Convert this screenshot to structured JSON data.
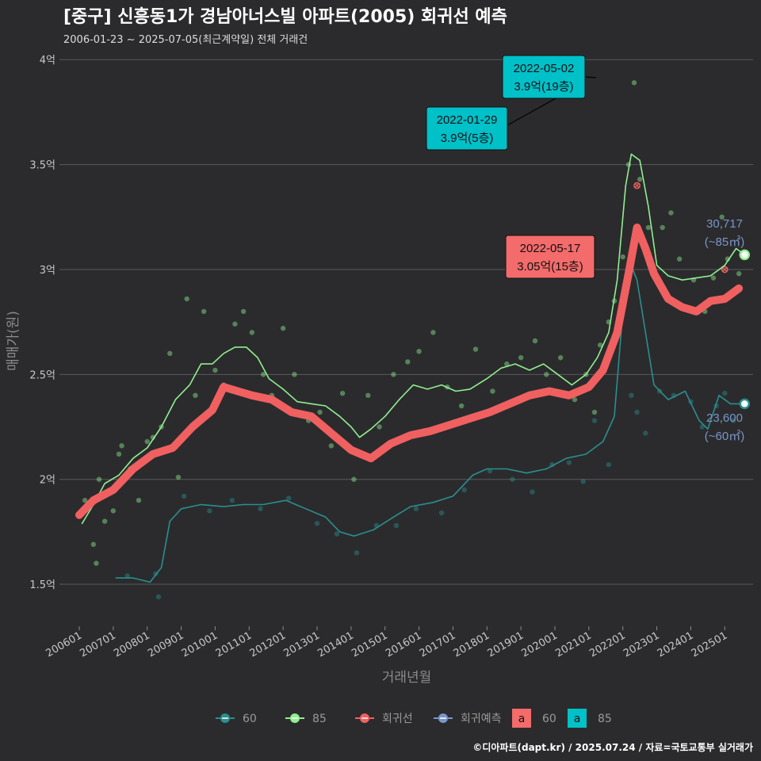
{
  "header": {
    "title": "[중구] 신흥동1가 경남아너스빌 아파트(2005) 회귀선 예측",
    "subtitle": "2006-01-23 ~ 2025-07-05(최근계약일) 전체 거래건"
  },
  "footer": {
    "source": "©디아파트(dapt.kr) / 2025.07.24 / 자료=국토교통부 실거래가"
  },
  "colors": {
    "background": "#2b2b2d",
    "grid": "#5a5a5c",
    "series_60": "#2a8f8f",
    "series_85": "#90ee90",
    "regression": "#f06060",
    "forecast": "#7a95c8",
    "callout_85": "#00c0c8",
    "callout_reg": "#f36b6b"
  },
  "chart_data": {
    "type": "line",
    "xlabel": "거래년월",
    "ylabel": "매매가(원)",
    "xlim": [
      "2005-06",
      "2025-11"
    ],
    "ylim": [
      1.3,
      4.05
    ],
    "y_ticks": [
      {
        "value": 1.5,
        "label": "1.5억"
      },
      {
        "value": 2.0,
        "label": "2억"
      },
      {
        "value": 2.5,
        "label": "2.5억"
      },
      {
        "value": 3.0,
        "label": "3억"
      },
      {
        "value": 3.5,
        "label": "3.5억"
      },
      {
        "value": 4.0,
        "label": "4억"
      }
    ],
    "x_ticks": [
      "200601",
      "200701",
      "200801",
      "200901",
      "201001",
      "201101",
      "201201",
      "201301",
      "201401",
      "201501",
      "201601",
      "201701",
      "201801",
      "201901",
      "202001",
      "202101",
      "202201",
      "202301",
      "202401",
      "202501"
    ],
    "grid": "horizontal",
    "legend_position": "bottom",
    "legend": {
      "lines": [
        {
          "label": "60",
          "color": "#2a8f8f"
        },
        {
          "label": "85",
          "color": "#90ee90"
        },
        {
          "label": "회귀선",
          "color": "#f06060"
        },
        {
          "label": "회귀예측",
          "color": "#7a95c8"
        }
      ],
      "labels": [
        {
          "label": "60",
          "color": "#f36b6b"
        },
        {
          "label": "85",
          "color": "#00c0c8"
        }
      ]
    },
    "series": [
      {
        "name": "85",
        "role": "moving-average",
        "points": [
          [
            "2006-02",
            1.79
          ],
          [
            "2006-06",
            1.88
          ],
          [
            "2006-10",
            1.98
          ],
          [
            "2007-03",
            2.02
          ],
          [
            "2007-08",
            2.1
          ],
          [
            "2008-01",
            2.15
          ],
          [
            "2008-06",
            2.25
          ],
          [
            "2008-11",
            2.38
          ],
          [
            "2009-04",
            2.45
          ],
          [
            "2009-08",
            2.55
          ],
          [
            "2009-12",
            2.55
          ],
          [
            "2010-04",
            2.6
          ],
          [
            "2010-08",
            2.63
          ],
          [
            "2010-12",
            2.63
          ],
          [
            "2011-04",
            2.58
          ],
          [
            "2011-08",
            2.48
          ],
          [
            "2012-01",
            2.43
          ],
          [
            "2012-06",
            2.37
          ],
          [
            "2012-11",
            2.36
          ],
          [
            "2013-04",
            2.35
          ],
          [
            "2013-09",
            2.3
          ],
          [
            "2014-01",
            2.25
          ],
          [
            "2014-04",
            2.2
          ],
          [
            "2014-08",
            2.24
          ],
          [
            "2015-01",
            2.3
          ],
          [
            "2015-06",
            2.38
          ],
          [
            "2015-11",
            2.45
          ],
          [
            "2016-04",
            2.43
          ],
          [
            "2016-09",
            2.45
          ],
          [
            "2017-02",
            2.42
          ],
          [
            "2017-07",
            2.43
          ],
          [
            "2018-01",
            2.48
          ],
          [
            "2018-06",
            2.53
          ],
          [
            "2018-11",
            2.55
          ],
          [
            "2019-04",
            2.52
          ],
          [
            "2019-09",
            2.55
          ],
          [
            "2020-02",
            2.5
          ],
          [
            "2020-07",
            2.45
          ],
          [
            "2020-12",
            2.5
          ],
          [
            "2021-04",
            2.58
          ],
          [
            "2021-08",
            2.7
          ],
          [
            "2021-11",
            2.95
          ],
          [
            "2022-02",
            3.4
          ],
          [
            "2022-04",
            3.55
          ],
          [
            "2022-07",
            3.52
          ],
          [
            "2022-10",
            3.3
          ],
          [
            "2023-01",
            3.02
          ],
          [
            "2023-05",
            2.97
          ],
          [
            "2023-10",
            2.95
          ],
          [
            "2024-03",
            2.96
          ],
          [
            "2024-08",
            2.97
          ],
          [
            "2025-01",
            3.02
          ],
          [
            "2025-05",
            3.1
          ],
          [
            "2025-08",
            3.07
          ]
        ]
      },
      {
        "name": "60",
        "role": "moving-average",
        "points": [
          [
            "2007-02",
            1.53
          ],
          [
            "2007-08",
            1.53
          ],
          [
            "2008-02",
            1.51
          ],
          [
            "2008-06",
            1.58
          ],
          [
            "2008-09",
            1.8
          ],
          [
            "2009-01",
            1.86
          ],
          [
            "2009-08",
            1.88
          ],
          [
            "2010-04",
            1.87
          ],
          [
            "2010-11",
            1.88
          ],
          [
            "2011-06",
            1.88
          ],
          [
            "2012-02",
            1.9
          ],
          [
            "2012-09",
            1.86
          ],
          [
            "2013-04",
            1.82
          ],
          [
            "2013-09",
            1.75
          ],
          [
            "2014-02",
            1.73
          ],
          [
            "2014-09",
            1.76
          ],
          [
            "2015-04",
            1.82
          ],
          [
            "2015-10",
            1.87
          ],
          [
            "2016-06",
            1.89
          ],
          [
            "2017-01",
            1.92
          ],
          [
            "2017-08",
            2.02
          ],
          [
            "2018-01",
            2.05
          ],
          [
            "2018-08",
            2.05
          ],
          [
            "2019-03",
            2.03
          ],
          [
            "2019-10",
            2.05
          ],
          [
            "2020-05",
            2.1
          ],
          [
            "2020-12",
            2.12
          ],
          [
            "2021-06",
            2.18
          ],
          [
            "2021-10",
            2.3
          ],
          [
            "2022-01",
            2.8
          ],
          [
            "2022-03",
            3.05
          ],
          [
            "2022-06",
            2.95
          ],
          [
            "2022-09",
            2.7
          ],
          [
            "2022-12",
            2.45
          ],
          [
            "2023-05",
            2.38
          ],
          [
            "2023-11",
            2.42
          ],
          [
            "2024-04",
            2.28
          ],
          [
            "2024-07",
            2.24
          ],
          [
            "2024-11",
            2.4
          ],
          [
            "2025-03",
            2.36
          ],
          [
            "2025-08",
            2.36
          ]
        ]
      },
      {
        "name": "회귀선",
        "role": "regression",
        "points": [
          [
            "2006-01",
            1.83
          ],
          [
            "2006-06",
            1.9
          ],
          [
            "2007-01",
            1.95
          ],
          [
            "2007-08",
            2.05
          ],
          [
            "2008-03",
            2.12
          ],
          [
            "2008-10",
            2.15
          ],
          [
            "2009-05",
            2.25
          ],
          [
            "2009-12",
            2.33
          ],
          [
            "2010-04",
            2.44
          ],
          [
            "2010-09",
            2.42
          ],
          [
            "2011-02",
            2.4
          ],
          [
            "2011-09",
            2.38
          ],
          [
            "2012-04",
            2.32
          ],
          [
            "2012-11",
            2.3
          ],
          [
            "2013-06",
            2.22
          ],
          [
            "2014-01",
            2.14
          ],
          [
            "2014-08",
            2.1
          ],
          [
            "2015-03",
            2.17
          ],
          [
            "2015-10",
            2.21
          ],
          [
            "2016-05",
            2.23
          ],
          [
            "2016-12",
            2.26
          ],
          [
            "2017-07",
            2.29
          ],
          [
            "2018-02",
            2.32
          ],
          [
            "2018-09",
            2.36
          ],
          [
            "2019-04",
            2.4
          ],
          [
            "2019-11",
            2.42
          ],
          [
            "2020-06",
            2.4
          ],
          [
            "2021-01",
            2.44
          ],
          [
            "2021-06",
            2.52
          ],
          [
            "2021-11",
            2.7
          ],
          [
            "2022-03",
            2.98
          ],
          [
            "2022-06",
            3.2
          ],
          [
            "2022-09",
            3.1
          ],
          [
            "2022-12",
            2.98
          ],
          [
            "2023-05",
            2.86
          ],
          [
            "2023-10",
            2.82
          ],
          [
            "2024-03",
            2.8
          ],
          [
            "2024-08",
            2.85
          ],
          [
            "2025-01",
            2.86
          ],
          [
            "2025-06",
            2.91
          ]
        ]
      }
    ],
    "scatter": {
      "85": [
        [
          "2006-03",
          1.9
        ],
        [
          "2006-06",
          1.69
        ],
        [
          "2006-07",
          1.6
        ],
        [
          "2006-08",
          2.0
        ],
        [
          "2006-10",
          1.8
        ],
        [
          "2007-01",
          1.85
        ],
        [
          "2007-03",
          2.12
        ],
        [
          "2007-04",
          2.16
        ],
        [
          "2007-07",
          2.05
        ],
        [
          "2007-10",
          1.9
        ],
        [
          "2008-01",
          2.18
        ],
        [
          "2008-03",
          2.2
        ],
        [
          "2008-06",
          2.25
        ],
        [
          "2008-09",
          2.6
        ],
        [
          "2008-12",
          2.01
        ],
        [
          "2009-03",
          2.86
        ],
        [
          "2009-06",
          2.4
        ],
        [
          "2009-09",
          2.8
        ],
        [
          "2010-01",
          2.52
        ],
        [
          "2010-04",
          2.45
        ],
        [
          "2010-08",
          2.74
        ],
        [
          "2010-11",
          2.8
        ],
        [
          "2011-02",
          2.7
        ],
        [
          "2011-06",
          2.5
        ],
        [
          "2011-09",
          2.4
        ],
        [
          "2012-01",
          2.72
        ],
        [
          "2012-05",
          2.5
        ],
        [
          "2012-10",
          2.28
        ],
        [
          "2013-02",
          2.32
        ],
        [
          "2013-06",
          2.16
        ],
        [
          "2013-10",
          2.41
        ],
        [
          "2014-02",
          2.0
        ],
        [
          "2014-07",
          2.4
        ],
        [
          "2014-11",
          2.25
        ],
        [
          "2015-04",
          2.5
        ],
        [
          "2015-09",
          2.56
        ],
        [
          "2016-01",
          2.61
        ],
        [
          "2016-06",
          2.7
        ],
        [
          "2016-11",
          2.44
        ],
        [
          "2017-04",
          2.35
        ],
        [
          "2017-09",
          2.62
        ],
        [
          "2018-03",
          2.42
        ],
        [
          "2018-08",
          2.55
        ],
        [
          "2019-01",
          2.58
        ],
        [
          "2019-06",
          2.66
        ],
        [
          "2019-10",
          2.5
        ],
        [
          "2020-03",
          2.58
        ],
        [
          "2020-08",
          2.38
        ],
        [
          "2020-12",
          2.5
        ],
        [
          "2021-03",
          2.32
        ],
        [
          "2021-05",
          2.64
        ],
        [
          "2021-08",
          2.75
        ],
        [
          "2021-10",
          2.85
        ],
        [
          "2022-01",
          3.06
        ],
        [
          "2022-03",
          3.5
        ],
        [
          "2022-05",
          3.89
        ],
        [
          "2022-07",
          3.43
        ],
        [
          "2022-10",
          3.2
        ],
        [
          "2023-03",
          3.2
        ],
        [
          "2023-06",
          3.27
        ],
        [
          "2023-09",
          3.05
        ],
        [
          "2024-02",
          2.95
        ],
        [
          "2024-06",
          2.8
        ],
        [
          "2024-09",
          2.96
        ],
        [
          "2024-12",
          3.25
        ],
        [
          "2025-02",
          3.05
        ],
        [
          "2025-06",
          2.98
        ]
      ],
      "60": [
        [
          "2007-06",
          1.54
        ],
        [
          "2008-04",
          1.55
        ],
        [
          "2008-05",
          1.44
        ],
        [
          "2009-02",
          1.92
        ],
        [
          "2009-11",
          1.85
        ],
        [
          "2010-07",
          1.9
        ],
        [
          "2011-05",
          1.86
        ],
        [
          "2012-03",
          1.91
        ],
        [
          "2013-01",
          1.79
        ],
        [
          "2013-08",
          1.74
        ],
        [
          "2014-03",
          1.65
        ],
        [
          "2014-10",
          1.78
        ],
        [
          "2015-05",
          1.78
        ],
        [
          "2015-12",
          1.86
        ],
        [
          "2016-09",
          1.84
        ],
        [
          "2017-05",
          1.95
        ],
        [
          "2018-02",
          2.04
        ],
        [
          "2018-10",
          2.0
        ],
        [
          "2019-05",
          1.94
        ],
        [
          "2019-12",
          2.07
        ],
        [
          "2020-06",
          2.08
        ],
        [
          "2020-11",
          1.99
        ],
        [
          "2021-03",
          2.28
        ],
        [
          "2021-08",
          2.07
        ],
        [
          "2021-12",
          2.8
        ],
        [
          "2022-04",
          2.4
        ],
        [
          "2022-06",
          2.32
        ],
        [
          "2022-09",
          2.22
        ],
        [
          "2023-02",
          2.42
        ],
        [
          "2023-07",
          2.4
        ],
        [
          "2024-01",
          2.37
        ],
        [
          "2024-05",
          2.25
        ],
        [
          "2024-10",
          2.35
        ],
        [
          "2025-01",
          2.41
        ],
        [
          "2025-04",
          2.28
        ]
      ],
      "회귀선": [
        [
          "2022-06",
          3.4
        ],
        [
          "2025-01",
          3.0
        ]
      ]
    },
    "callouts": [
      {
        "date": "2022-05-02",
        "line1": "2022-05-02",
        "line2": "3.9억(19층)",
        "kind": "85"
      },
      {
        "date": "2022-01-29",
        "line1": "2022-01-29",
        "line2": "3.9억(5층)",
        "kind": "85"
      },
      {
        "date": "2022-05-17",
        "line1": "2022-05-17",
        "line2": "3.05억(15층)",
        "kind": "regression"
      }
    ],
    "end_labels": [
      {
        "series": "85",
        "line1": "30,717",
        "line2": "(~85㎡)",
        "value": 3.07
      },
      {
        "series": "60",
        "line1": "23,600",
        "line2": "(~60㎡)",
        "value": 2.36
      }
    ]
  }
}
